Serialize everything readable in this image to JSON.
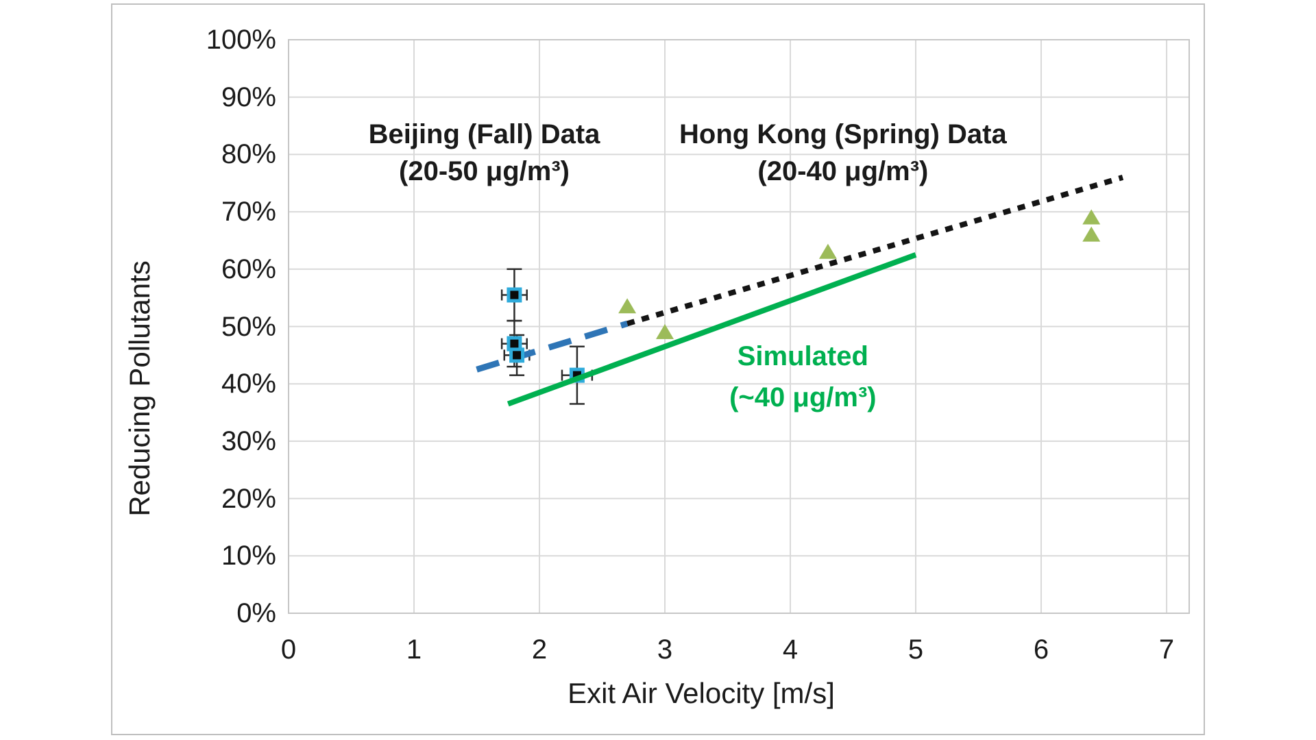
{
  "page": {
    "background_color": "#ffffff",
    "figure_border_color": "#BFBFBF"
  },
  "annotations": {
    "beijing": {
      "line1": "Beijing (Fall) Data",
      "line2": "(20-50 μg/m³)",
      "color": "#1a1a1a",
      "x": 1.56,
      "y_line1": 83.5,
      "y_line2": 77.1
    },
    "hongkong": {
      "line1": "Hong Kong (Spring) Data",
      "line2": "(20-40 μg/m³)",
      "color": "#1a1a1a",
      "x": 4.42,
      "y_line1": 83.5,
      "y_line2": 77.1
    },
    "simulated": {
      "line1": "Simulated",
      "line2": "(~40 μg/m³)",
      "color": "#00B050",
      "x": 4.1,
      "y_line1": 44.8,
      "y_line2": 37.6
    }
  },
  "chart_data": {
    "type": "scatter",
    "title": "",
    "xlabel": "Exit Air Velocity [m/s]",
    "ylabel": "Reducing Pollutants",
    "grid": true,
    "legend_position": "none (series labeled by on-chart annotations)",
    "x_axis": {
      "min": 0,
      "max": 7,
      "ticks": [
        0,
        1,
        2,
        3,
        4,
        5,
        6,
        7
      ],
      "tick_labels": [
        "0",
        "1",
        "2",
        "3",
        "4",
        "5",
        "6",
        "7"
      ]
    },
    "y_axis": {
      "min": 0,
      "max": 100,
      "unit": "percent",
      "tick_values": [
        0,
        10,
        20,
        30,
        40,
        50,
        60,
        70,
        80,
        90,
        100
      ],
      "tick_labels": [
        "0%",
        "10%",
        "20%",
        "30%",
        "40%",
        "50%",
        "60%",
        "70%",
        "80%",
        "90%",
        "100%"
      ]
    },
    "style": {
      "gridline_color": "#D9D9D9",
      "plot_border_color": "#C6C6C6",
      "text_color": "#1a1a1a"
    },
    "series": [
      {
        "name": "Beijing (Fall) Data (20-50 μg/m³)",
        "kind": "points",
        "marker": "square",
        "marker_fill": "#0b0b0b",
        "marker_border": "#2FABDB",
        "error_bar_color": "#2b2b2b",
        "points": [
          {
            "x": 1.8,
            "y": 55.5,
            "xerr": 0.1,
            "yerr": 4.5
          },
          {
            "x": 1.8,
            "y": 47.0,
            "xerr": 0.1,
            "yerr": 4.0
          },
          {
            "x": 1.82,
            "y": 45.0,
            "xerr": 0.1,
            "yerr": 3.5
          },
          {
            "x": 2.3,
            "y": 41.5,
            "xerr": 0.12,
            "yerr": 5.0,
            "behind": true
          }
        ]
      },
      {
        "name": "Hong Kong (Spring) Data (20-40 μg/m³)",
        "kind": "points",
        "marker": "triangle",
        "marker_fill": "#9CBB59",
        "points": [
          {
            "x": 2.7,
            "y": 53.5
          },
          {
            "x": 3.0,
            "y": 49.0
          },
          {
            "x": 4.3,
            "y": 63.0
          },
          {
            "x": 6.4,
            "y": 69.0
          },
          {
            "x": 6.4,
            "y": 66.0
          }
        ]
      },
      {
        "name": "Beijing trend line",
        "kind": "line",
        "style": "dashed",
        "color": "#2E75B6",
        "width": 9,
        "dash": "34 21",
        "from": [
          1.5,
          42.5
        ],
        "to": [
          2.7,
          50.5
        ]
      },
      {
        "name": "Hong Kong trend line",
        "kind": "line",
        "style": "dotted",
        "color": "#141414",
        "width": 8,
        "dash": "11 11",
        "from": [
          2.7,
          50.5
        ],
        "to": [
          6.65,
          76.0
        ]
      },
      {
        "name": "Simulated (~40 μg/m³) line",
        "kind": "line",
        "style": "solid",
        "color": "#00B050",
        "width": 8,
        "from": [
          1.75,
          36.5
        ],
        "to": [
          5.0,
          62.5
        ]
      }
    ]
  }
}
